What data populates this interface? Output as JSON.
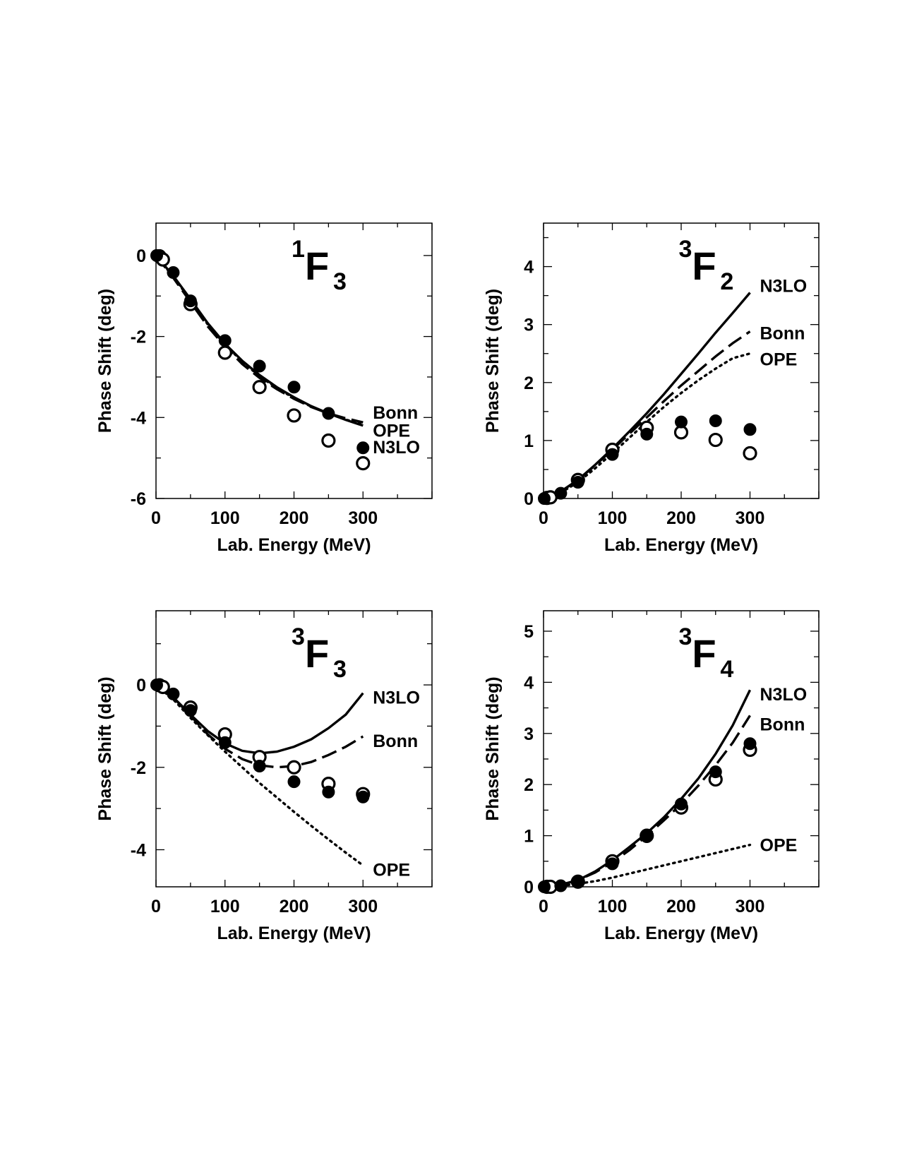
{
  "chart_data": [
    {
      "type": "line",
      "title": {
        "letter": "F",
        "sup": "1",
        "sub": "3"
      },
      "xlabel": "Lab. Energy (MeV)",
      "ylabel": "Phase Shift (deg)",
      "xlim": [
        0,
        400
      ],
      "ylim": [
        -6,
        0.8
      ],
      "xticks": [
        0,
        100,
        200,
        300
      ],
      "yticks": [
        0,
        -2,
        -4,
        -6
      ],
      "grid": false,
      "legend_position": "series labels at curve ends",
      "series": [
        {
          "name": "Bonn",
          "style": "dashed",
          "x": [
            0,
            25,
            50,
            75,
            100,
            125,
            150,
            175,
            200,
            225,
            250,
            275,
            300
          ],
          "y": [
            0,
            -0.55,
            -1.15,
            -1.75,
            -2.25,
            -2.68,
            -3.02,
            -3.3,
            -3.54,
            -3.74,
            -3.9,
            -4.02,
            -4.12
          ]
        },
        {
          "name": "OPE",
          "style": "dotted",
          "x": [
            0,
            25,
            50,
            75,
            100,
            125,
            150,
            175,
            200,
            225,
            250,
            275,
            300
          ],
          "y": [
            0,
            -0.52,
            -1.1,
            -1.7,
            -2.2,
            -2.62,
            -2.98,
            -3.27,
            -3.52,
            -3.73,
            -3.9,
            -4.05,
            -4.18
          ]
        },
        {
          "name": "N3LO",
          "style": "solid",
          "x": [
            0,
            25,
            50,
            75,
            100,
            125,
            150,
            175,
            200,
            225,
            250,
            275,
            300
          ],
          "y": [
            0,
            -0.5,
            -1.08,
            -1.67,
            -2.18,
            -2.6,
            -2.95,
            -3.25,
            -3.5,
            -3.72,
            -3.9,
            -4.06,
            -4.2
          ]
        }
      ],
      "data_points": {
        "filled": {
          "x": [
            1,
            25,
            50,
            100,
            150,
            200,
            250,
            300
          ],
          "y": [
            0,
            -0.42,
            -1.12,
            -2.1,
            -2.73,
            -3.25,
            -3.9,
            -4.75
          ]
        },
        "open": {
          "x": [
            5,
            10,
            50,
            100,
            150,
            200,
            250,
            300
          ],
          "y": [
            -0.02,
            -0.1,
            -1.2,
            -2.4,
            -3.25,
            -3.95,
            -4.57,
            -5.13
          ]
        }
      }
    },
    {
      "type": "line",
      "title": {
        "letter": "F",
        "sup": "3",
        "sub": "2"
      },
      "xlabel": "Lab. Energy (MeV)",
      "ylabel": "Phase Shift (deg)",
      "xlim": [
        0,
        400
      ],
      "ylim": [
        0,
        4.75
      ],
      "xticks": [
        0,
        100,
        200,
        300
      ],
      "yticks": [
        0,
        1,
        2,
        3,
        4
      ],
      "grid": false,
      "legend_position": "series labels at curve ends",
      "series": [
        {
          "name": "N3LO",
          "style": "solid",
          "x": [
            0,
            25,
            50,
            75,
            100,
            125,
            150,
            175,
            200,
            225,
            250,
            275,
            300
          ],
          "y": [
            0,
            0.12,
            0.32,
            0.58,
            0.86,
            1.16,
            1.47,
            1.8,
            2.15,
            2.5,
            2.86,
            3.2,
            3.55
          ]
        },
        {
          "name": "Bonn",
          "style": "dashed",
          "x": [
            0,
            25,
            50,
            75,
            100,
            125,
            150,
            175,
            200,
            225,
            250,
            275,
            300
          ],
          "y": [
            0,
            0.12,
            0.32,
            0.57,
            0.84,
            1.12,
            1.4,
            1.68,
            1.95,
            2.2,
            2.45,
            2.68,
            2.88
          ]
        },
        {
          "name": "OPE",
          "style": "dotted",
          "x": [
            0,
            25,
            50,
            75,
            100,
            125,
            150,
            175,
            200,
            225,
            250,
            275,
            300
          ],
          "y": [
            0,
            0.1,
            0.28,
            0.52,
            0.78,
            1.05,
            1.32,
            1.58,
            1.82,
            2.04,
            2.24,
            2.42,
            2.5
          ]
        }
      ],
      "data_points": {
        "filled": {
          "x": [
            1,
            25,
            50,
            100,
            150,
            200,
            250,
            300
          ],
          "y": [
            0,
            0.09,
            0.28,
            0.76,
            1.11,
            1.32,
            1.34,
            1.19
          ]
        },
        "open": {
          "x": [
            5,
            10,
            50,
            100,
            150,
            200,
            250,
            300
          ],
          "y": [
            0.01,
            0.02,
            0.32,
            0.84,
            1.22,
            1.14,
            1.01,
            0.78
          ]
        }
      }
    },
    {
      "type": "line",
      "title": {
        "letter": "F",
        "sup": "3",
        "sub": "3"
      },
      "xlabel": "Lab. Energy (MeV)",
      "ylabel": "Phase Shift (deg)",
      "xlim": [
        0,
        400
      ],
      "ylim": [
        -4.9,
        1.8
      ],
      "xticks": [
        0,
        100,
        200,
        300
      ],
      "yticks": [
        0,
        -2,
        -4
      ],
      "grid": false,
      "legend_position": "series labels at curve ends",
      "series": [
        {
          "name": "N3LO",
          "style": "solid",
          "x": [
            0,
            25,
            50,
            75,
            100,
            125,
            150,
            175,
            200,
            225,
            250,
            275,
            300
          ],
          "y": [
            0,
            -0.3,
            -0.72,
            -1.12,
            -1.42,
            -1.6,
            -1.66,
            -1.62,
            -1.5,
            -1.32,
            -1.05,
            -0.72,
            -0.2
          ]
        },
        {
          "name": "Bonn",
          "style": "dashed",
          "x": [
            0,
            25,
            50,
            75,
            100,
            125,
            150,
            175,
            200,
            225,
            250,
            275,
            300
          ],
          "y": [
            0,
            -0.3,
            -0.75,
            -1.2,
            -1.55,
            -1.8,
            -1.95,
            -2.0,
            -1.97,
            -1.87,
            -1.7,
            -1.5,
            -1.25
          ]
        },
        {
          "name": "OPE",
          "style": "dotted",
          "x": [
            0,
            25,
            50,
            75,
            100,
            125,
            150,
            175,
            200,
            225,
            250,
            275,
            300
          ],
          "y": [
            0,
            -0.35,
            -0.8,
            -1.22,
            -1.62,
            -2.0,
            -2.38,
            -2.73,
            -3.08,
            -3.42,
            -3.75,
            -4.07,
            -4.38
          ]
        }
      ],
      "data_points": {
        "filled": {
          "x": [
            1,
            25,
            50,
            100,
            150,
            200,
            250,
            300
          ],
          "y": [
            0,
            -0.22,
            -0.62,
            -1.4,
            -1.97,
            -2.35,
            -2.6,
            -2.72
          ]
        },
        "open": {
          "x": [
            5,
            10,
            50,
            100,
            150,
            200,
            250,
            300
          ],
          "y": [
            -0.01,
            -0.05,
            -0.55,
            -1.2,
            -1.75,
            -2.0,
            -2.4,
            -2.65
          ]
        }
      }
    },
    {
      "type": "line",
      "title": {
        "letter": "F",
        "sup": "3",
        "sub": "4"
      },
      "xlabel": "Lab. Energy (MeV)",
      "ylabel": "Phase Shift (deg)",
      "xlim": [
        0,
        400
      ],
      "ylim": [
        0,
        5.4
      ],
      "xticks": [
        0,
        100,
        200,
        300
      ],
      "yticks": [
        0,
        1,
        2,
        3,
        4,
        5
      ],
      "grid": false,
      "legend_position": "series labels at curve ends",
      "series": [
        {
          "name": "N3LO",
          "style": "solid",
          "x": [
            0,
            25,
            50,
            75,
            100,
            125,
            150,
            175,
            200,
            225,
            250,
            275,
            300
          ],
          "y": [
            0,
            0.04,
            0.13,
            0.3,
            0.52,
            0.78,
            1.05,
            1.36,
            1.72,
            2.12,
            2.6,
            3.16,
            3.85
          ]
        },
        {
          "name": "Bonn",
          "style": "dashed",
          "x": [
            0,
            25,
            50,
            75,
            100,
            125,
            150,
            175,
            200,
            225,
            250,
            275,
            300
          ],
          "y": [
            0,
            0.04,
            0.13,
            0.28,
            0.48,
            0.72,
            1.0,
            1.3,
            1.62,
            1.98,
            2.38,
            2.82,
            3.35
          ]
        },
        {
          "name": "OPE",
          "style": "dotted",
          "x": [
            0,
            25,
            50,
            75,
            100,
            125,
            150,
            175,
            200,
            225,
            250,
            275,
            300
          ],
          "y": [
            0,
            0.02,
            0.06,
            0.11,
            0.18,
            0.26,
            0.34,
            0.42,
            0.5,
            0.58,
            0.66,
            0.74,
            0.82
          ]
        }
      ],
      "data_points": {
        "filled": {
          "x": [
            1,
            25,
            50,
            100,
            150,
            200,
            250,
            300
          ],
          "y": [
            0,
            0.02,
            0.1,
            0.45,
            0.98,
            1.62,
            2.25,
            2.8
          ]
        },
        "open": {
          "x": [
            5,
            10,
            50,
            100,
            150,
            200,
            250,
            300
          ],
          "y": [
            0,
            0,
            0.1,
            0.5,
            1.0,
            1.55,
            2.1,
            2.68
          ]
        }
      }
    }
  ]
}
